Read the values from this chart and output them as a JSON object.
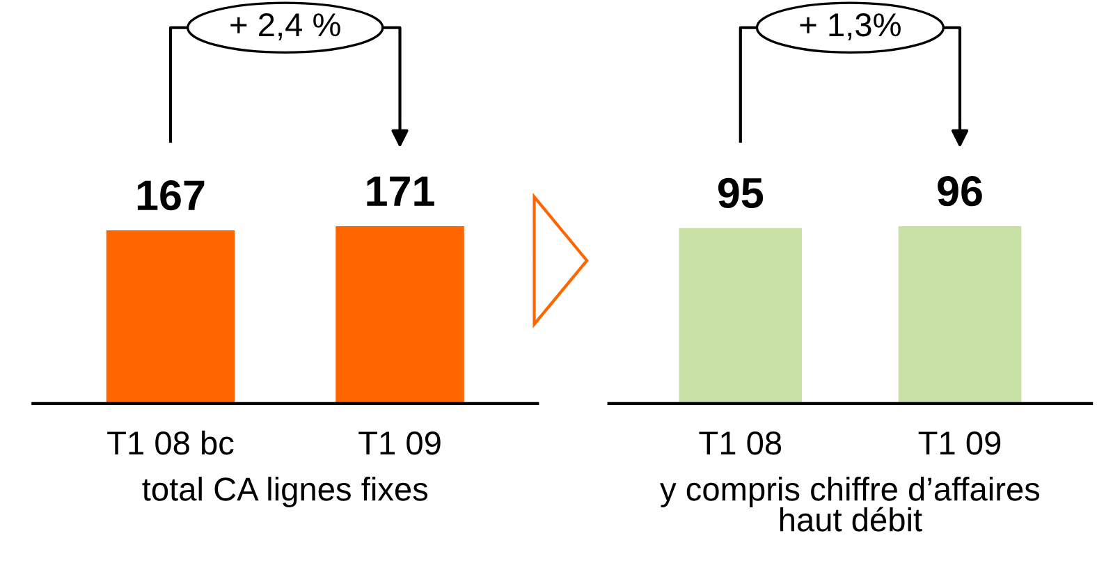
{
  "chart_data": [
    {
      "type": "bar",
      "categories": [
        "T1 08 bc",
        "T1 09"
      ],
      "values": [
        167,
        171
      ],
      "color": "#ff6600",
      "data_labels": true,
      "xlabel": "total CA lignes fixes",
      "annotations": [
        "+ 2,4 %"
      ],
      "tick_labels": "x",
      "grid": false,
      "legend": false
    },
    {
      "type": "bar",
      "categories": [
        "T1 08",
        "T1 09"
      ],
      "values": [
        95,
        96
      ],
      "color": "#c9e0a5",
      "data_labels": true,
      "xlabel": "y compris chiffre d’affaires\nhaut débit",
      "annotations": [
        "+ 1,3%"
      ],
      "tick_labels": "x",
      "grid": false,
      "legend": false
    }
  ]
}
